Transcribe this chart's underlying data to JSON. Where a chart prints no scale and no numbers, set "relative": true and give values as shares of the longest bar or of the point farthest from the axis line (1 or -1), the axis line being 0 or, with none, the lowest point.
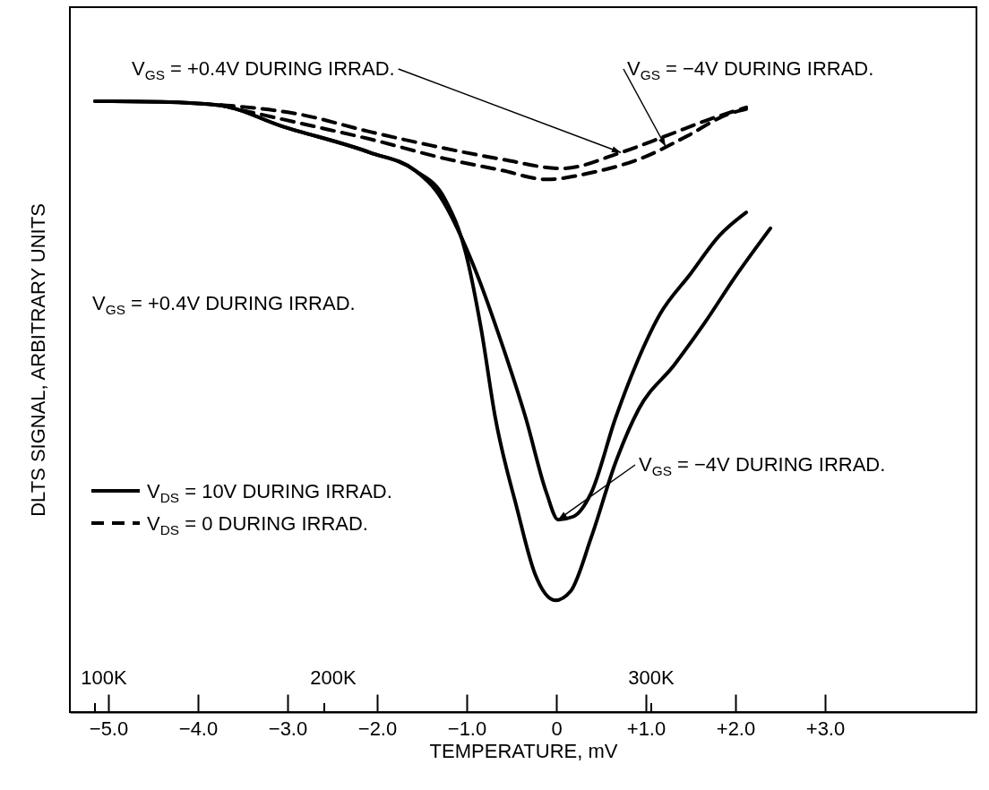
{
  "chart_data": {
    "type": "line",
    "relative": true,
    "xlabel": "TEMPERATURE, mV",
    "ylabel": "DLTS SIGNAL, ARBITRARY UNITS",
    "xlim": [
      -5.43,
      4.69
    ],
    "xticks": [
      {
        "value": -5,
        "label": "−5.0"
      },
      {
        "value": -4,
        "label": "−4.0"
      },
      {
        "value": -3,
        "label": "−3.0"
      },
      {
        "value": -2,
        "label": "−2.0"
      },
      {
        "value": -1,
        "label": "−1.0"
      },
      0,
      {
        "value": 1,
        "label": "+1.0"
      },
      {
        "value": 2,
        "label": "+2.0"
      },
      {
        "value": 3,
        "label": "+3.0"
      }
    ],
    "grid": false,
    "legend": "left",
    "series": [
      {
        "name": "V$_{DS}$ = 10V DURING IRRAD.",
        "color": "#000000",
        "line_style": "solid",
        "x": [
          -5.15,
          -4.41,
          -3.74,
          -3.08,
          -2.08,
          -1.58,
          -1.24,
          -1.01,
          -0.84,
          -0.68,
          -0.44,
          -0.24,
          -0.01,
          0.16,
          0.39,
          0.66,
          0.92,
          1.32,
          1.66,
          1.99,
          2.39
        ],
        "values": [
          1.0,
          0.999,
          0.993,
          0.96,
          0.916,
          0.887,
          0.839,
          0.751,
          0.628,
          0.481,
          0.334,
          0.227,
          0.183,
          0.198,
          0.286,
          0.408,
          0.496,
          0.569,
          0.638,
          0.711,
          0.792
        ]
      },
      {
        "color": "#000000",
        "line_style": "solid",
        "x": [
          -5.15,
          -4.41,
          -3.74,
          -3.08,
          -2.08,
          -1.58,
          -1.34,
          -0.91,
          -0.61,
          -0.34,
          -0.11,
          0.02,
          0.19,
          0.39,
          0.66,
          0.89,
          1.16,
          1.49,
          1.82,
          2.12
        ],
        "values": [
          1.0,
          0.999,
          0.993,
          0.96,
          0.916,
          0.887,
          0.853,
          0.726,
          0.604,
          0.481,
          0.359,
          0.315,
          0.32,
          0.359,
          0.481,
          0.569,
          0.652,
          0.716,
          0.78,
          0.818
        ]
      },
      {
        "name": "V$_{DS}$ = 0 DURING IRRAD.",
        "color": "#000000",
        "line_style": "dashed",
        "x": [
          -3.74,
          -2.88,
          -2.08,
          -1.41,
          -0.61,
          0.06,
          0.72,
          1.22,
          1.72,
          2.12
        ],
        "values": [
          0.994,
          0.979,
          0.95,
          0.928,
          0.905,
          0.89,
          0.916,
          0.943,
          0.971,
          0.99
        ]
      },
      {
        "color": "#000000",
        "line_style": "dashed",
        "x": [
          -3.74,
          -2.74,
          -2.08,
          -1.24,
          -0.61,
          -0.11,
          0.39,
          0.99,
          1.46,
          1.92,
          2.12
        ],
        "values": [
          0.993,
          0.96,
          0.938,
          0.906,
          0.887,
          0.872,
          0.883,
          0.909,
          0.943,
          0.979,
          0.987
        ]
      }
    ],
    "annotations": [
      {
        "text": "V$_{GS}$ = +0.4V DURING IRRAD.",
        "x": 0.72,
        "y": 0.916
      },
      {
        "text": "V$_{GS}$ = −4V DURING IRRAD.",
        "x": 1.22,
        "y": 0.926
      },
      "V$_{GS}$ = +0.4V DURING IRRAD.",
      {
        "text": "V$_{GS}$ = −4V DURING IRRAD.",
        "x": 0.02,
        "y": 0.315
      },
      "100K",
      "200K",
      "300K"
    ]
  }
}
